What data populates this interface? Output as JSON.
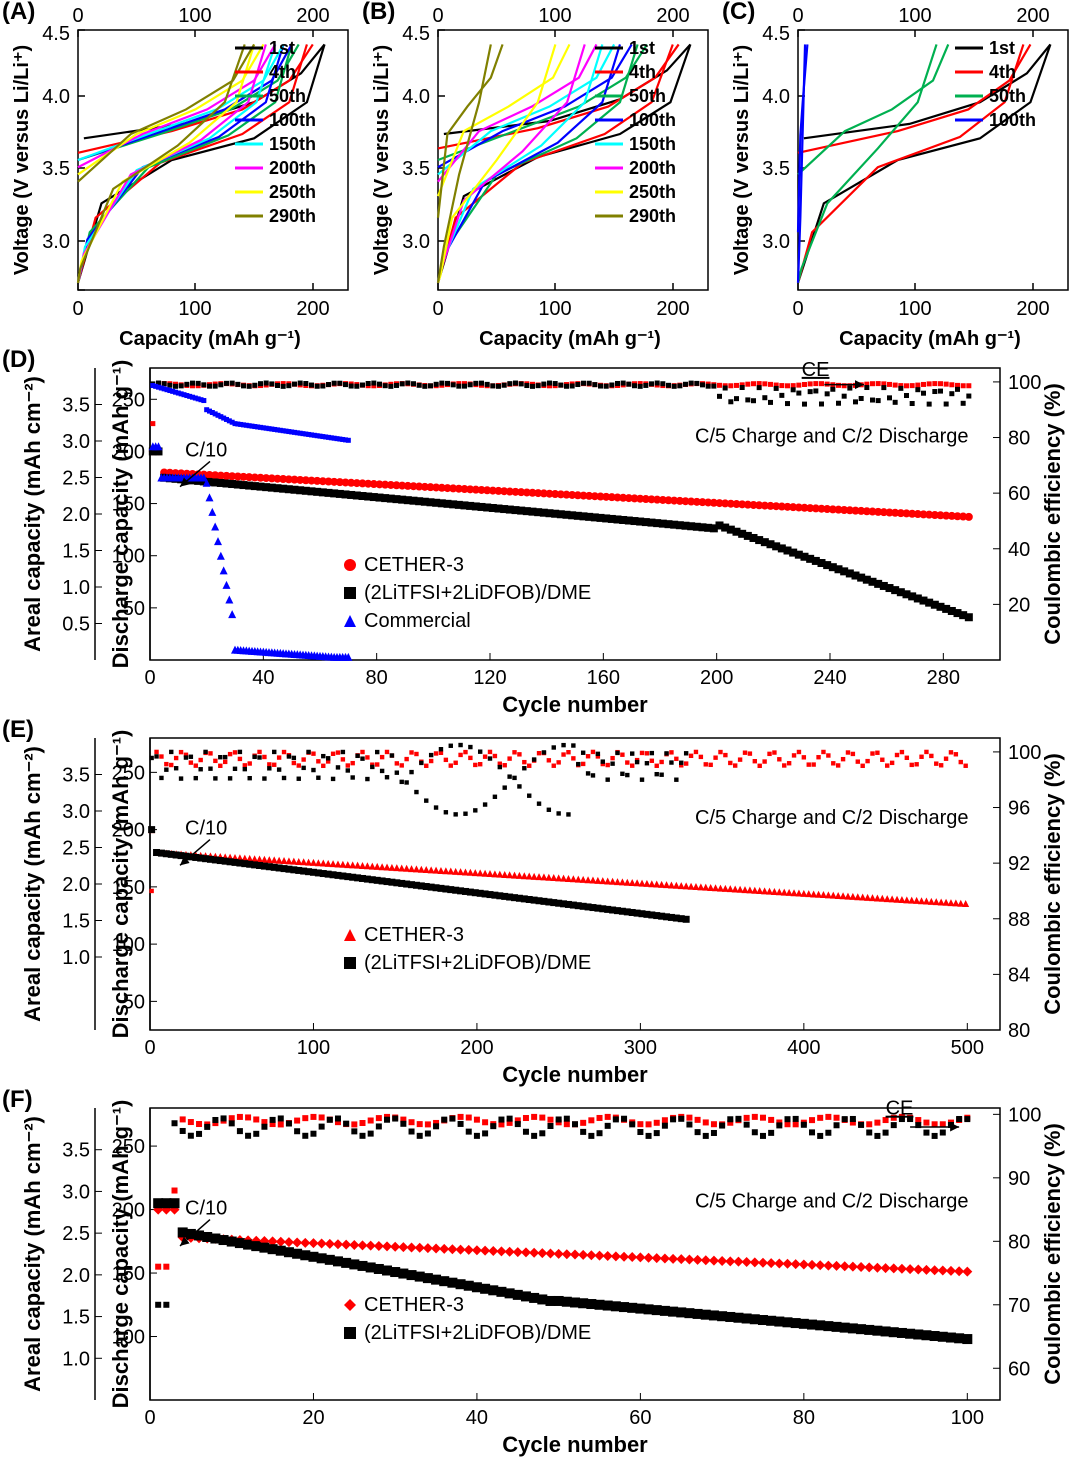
{
  "panel_labels": {
    "A": "(A)",
    "B": "(B)",
    "C": "(C)",
    "D": "(D)",
    "E": "(E)",
    "F": "(F)"
  },
  "panel_label_fontsize": 24,
  "voltage": {
    "xlabel": "Capacity (mAh g⁻¹)",
    "ylabel": "Voltage (V versus Li/Li⁺)",
    "xlim": [
      0,
      230
    ],
    "ylim": [
      2.7,
      4.5
    ],
    "xticks": [
      0,
      100,
      200
    ],
    "yticks": [
      3.0,
      3.5,
      4.0,
      4.5
    ],
    "top_xticks": [
      0,
      100,
      200
    ],
    "label_fontsize": 22,
    "tick_fontsize": 20,
    "line_width": 2.2,
    "legend_items": [
      {
        "label": "1st",
        "color": "#000000"
      },
      {
        "label": "4th",
        "color": "#ff0000"
      },
      {
        "label": "50th",
        "color": "#00b050"
      },
      {
        "label": "100th",
        "color": "#0000ff"
      },
      {
        "label": "150th",
        "color": "#00ffff"
      },
      {
        "label": "200th",
        "color": "#ff00ff"
      },
      {
        "label": "250th",
        "color": "#ffff00"
      },
      {
        "label": "290th",
        "color": "#808000"
      }
    ],
    "legend_items_C": [
      {
        "label": "1st",
        "color": "#000000"
      },
      {
        "label": "4th",
        "color": "#ff0000"
      },
      {
        "label": "50th",
        "color": "#00b050"
      },
      {
        "label": "100th",
        "color": "#0000ff"
      }
    ]
  },
  "panelA_curves": [
    {
      "color": "#000000",
      "charge": [
        [
          5,
          3.75
        ],
        [
          90,
          3.85
        ],
        [
          150,
          4.0
        ],
        [
          190,
          4.2
        ],
        [
          210,
          4.4
        ]
      ],
      "discharge": [
        [
          210,
          4.4
        ],
        [
          195,
          4.0
        ],
        [
          150,
          3.75
        ],
        [
          80,
          3.6
        ],
        [
          20,
          3.3
        ],
        [
          0,
          2.75
        ]
      ]
    },
    {
      "color": "#ff0000",
      "charge": [
        [
          0,
          3.65
        ],
        [
          80,
          3.8
        ],
        [
          140,
          3.95
        ],
        [
          180,
          4.15
        ],
        [
          200,
          4.4
        ]
      ],
      "discharge": [
        [
          195,
          4.4
        ],
        [
          180,
          4.0
        ],
        [
          140,
          3.78
        ],
        [
          70,
          3.58
        ],
        [
          15,
          3.2
        ],
        [
          0,
          2.75
        ]
      ]
    },
    {
      "color": "#00b050",
      "charge": [
        [
          0,
          3.6
        ],
        [
          70,
          3.78
        ],
        [
          130,
          3.95
        ],
        [
          170,
          4.15
        ],
        [
          188,
          4.4
        ]
      ],
      "discharge": [
        [
          182,
          4.4
        ],
        [
          168,
          4.0
        ],
        [
          128,
          3.77
        ],
        [
          60,
          3.55
        ],
        [
          10,
          3.1
        ],
        [
          0,
          2.75
        ]
      ]
    },
    {
      "color": "#0000ff",
      "charge": [
        [
          0,
          3.6
        ],
        [
          65,
          3.78
        ],
        [
          125,
          3.95
        ],
        [
          165,
          4.15
        ],
        [
          182,
          4.4
        ]
      ],
      "discharge": [
        [
          175,
          4.4
        ],
        [
          160,
          4.0
        ],
        [
          120,
          3.76
        ],
        [
          55,
          3.55
        ],
        [
          8,
          3.05
        ],
        [
          0,
          2.75
        ]
      ]
    },
    {
      "color": "#00ffff",
      "charge": [
        [
          0,
          3.6
        ],
        [
          60,
          3.78
        ],
        [
          118,
          3.95
        ],
        [
          158,
          4.15
        ],
        [
          175,
          4.4
        ]
      ],
      "discharge": [
        [
          168,
          4.4
        ],
        [
          152,
          4.0
        ],
        [
          112,
          3.75
        ],
        [
          50,
          3.53
        ],
        [
          6,
          3.0
        ],
        [
          0,
          2.75
        ]
      ]
    },
    {
      "color": "#ff00ff",
      "charge": [
        [
          0,
          3.55
        ],
        [
          55,
          3.78
        ],
        [
          110,
          3.95
        ],
        [
          150,
          4.15
        ],
        [
          168,
          4.4
        ]
      ],
      "discharge": [
        [
          160,
          4.4
        ],
        [
          145,
          4.0
        ],
        [
          105,
          3.74
        ],
        [
          45,
          3.5
        ],
        [
          5,
          2.95
        ],
        [
          0,
          2.75
        ]
      ]
    },
    {
      "color": "#ffff00",
      "charge": [
        [
          0,
          3.5
        ],
        [
          50,
          3.78
        ],
        [
          100,
          3.95
        ],
        [
          140,
          4.15
        ],
        [
          158,
          4.4
        ]
      ],
      "discharge": [
        [
          150,
          4.4
        ],
        [
          135,
          4.0
        ],
        [
          95,
          3.72
        ],
        [
          38,
          3.45
        ],
        [
          3,
          2.9
        ],
        [
          0,
          2.75
        ]
      ]
    },
    {
      "color": "#808000",
      "charge": [
        [
          0,
          3.45
        ],
        [
          45,
          3.78
        ],
        [
          92,
          3.95
        ],
        [
          132,
          4.15
        ],
        [
          150,
          4.4
        ]
      ],
      "discharge": [
        [
          142,
          4.4
        ],
        [
          125,
          4.0
        ],
        [
          85,
          3.7
        ],
        [
          30,
          3.4
        ],
        [
          2,
          2.85
        ],
        [
          0,
          2.75
        ]
      ]
    }
  ],
  "panelB_curves": [
    {
      "color": "#000000",
      "charge": [
        [
          5,
          3.78
        ],
        [
          95,
          3.87
        ],
        [
          155,
          4.02
        ],
        [
          195,
          4.22
        ],
        [
          215,
          4.4
        ]
      ],
      "discharge": [
        [
          215,
          4.4
        ],
        [
          198,
          4.0
        ],
        [
          155,
          3.78
        ],
        [
          85,
          3.62
        ],
        [
          22,
          3.35
        ],
        [
          0,
          2.75
        ]
      ]
    },
    {
      "color": "#ff0000",
      "charge": [
        [
          0,
          3.68
        ],
        [
          85,
          3.82
        ],
        [
          145,
          3.97
        ],
        [
          185,
          4.17
        ],
        [
          205,
          4.4
        ]
      ],
      "discharge": [
        [
          200,
          4.4
        ],
        [
          182,
          4.0
        ],
        [
          142,
          3.78
        ],
        [
          72,
          3.58
        ],
        [
          15,
          3.2
        ],
        [
          0,
          2.75
        ]
      ]
    },
    {
      "color": "#00b050",
      "charge": [
        [
          0,
          3.6
        ],
        [
          65,
          3.8
        ],
        [
          120,
          3.97
        ],
        [
          160,
          4.17
        ],
        [
          178,
          4.4
        ]
      ],
      "discharge": [
        [
          170,
          4.4
        ],
        [
          155,
          4.0
        ],
        [
          118,
          3.75
        ],
        [
          50,
          3.5
        ],
        [
          8,
          3.0
        ],
        [
          0,
          2.75
        ]
      ]
    },
    {
      "color": "#0000ff",
      "charge": [
        [
          0,
          3.55
        ],
        [
          55,
          3.8
        ],
        [
          108,
          3.97
        ],
        [
          148,
          4.17
        ],
        [
          165,
          4.4
        ]
      ],
      "discharge": [
        [
          155,
          4.4
        ],
        [
          140,
          4.0
        ],
        [
          102,
          3.72
        ],
        [
          40,
          3.45
        ],
        [
          6,
          2.95
        ],
        [
          0,
          2.75
        ]
      ]
    },
    {
      "color": "#00ffff",
      "charge": [
        [
          0,
          3.5
        ],
        [
          45,
          3.8
        ],
        [
          95,
          3.97
        ],
        [
          135,
          4.17
        ],
        [
          150,
          4.4
        ]
      ],
      "discharge": [
        [
          140,
          4.4
        ],
        [
          125,
          4.0
        ],
        [
          88,
          3.7
        ],
        [
          30,
          3.4
        ],
        [
          4,
          2.9
        ],
        [
          0,
          2.75
        ]
      ]
    },
    {
      "color": "#ff00ff",
      "charge": [
        [
          0,
          3.45
        ],
        [
          35,
          3.8
        ],
        [
          80,
          3.97
        ],
        [
          120,
          4.17
        ],
        [
          135,
          4.4
        ]
      ],
      "discharge": [
        [
          125,
          4.4
        ],
        [
          110,
          4.0
        ],
        [
          72,
          3.66
        ],
        [
          22,
          3.32
        ],
        [
          3,
          2.85
        ],
        [
          0,
          2.75
        ]
      ]
    },
    {
      "color": "#ffff00",
      "charge": [
        [
          0,
          3.35
        ],
        [
          22,
          3.8
        ],
        [
          60,
          3.97
        ],
        [
          98,
          4.17
        ],
        [
          112,
          4.4
        ]
      ],
      "discharge": [
        [
          100,
          4.4
        ],
        [
          85,
          4.0
        ],
        [
          50,
          3.6
        ],
        [
          12,
          3.2
        ],
        [
          2,
          2.8
        ],
        [
          0,
          2.75
        ]
      ]
    },
    {
      "color": "#808000",
      "charge": [
        [
          0,
          3.2
        ],
        [
          8,
          3.78
        ],
        [
          25,
          3.97
        ],
        [
          45,
          4.17
        ],
        [
          55,
          4.4
        ]
      ],
      "discharge": [
        [
          45,
          4.4
        ],
        [
          35,
          4.0
        ],
        [
          18,
          3.5
        ],
        [
          5,
          3.0
        ],
        [
          0,
          2.75
        ]
      ]
    }
  ],
  "panelC_curves": [
    {
      "color": "#000000",
      "charge": [
        [
          5,
          3.75
        ],
        [
          95,
          3.85
        ],
        [
          155,
          4.0
        ],
        [
          195,
          4.2
        ],
        [
          215,
          4.4
        ]
      ],
      "discharge": [
        [
          215,
          4.4
        ],
        [
          198,
          4.0
        ],
        [
          155,
          3.75
        ],
        [
          85,
          3.6
        ],
        [
          22,
          3.3
        ],
        [
          0,
          2.75
        ]
      ]
    },
    {
      "color": "#ff0000",
      "charge": [
        [
          0,
          3.65
        ],
        [
          85,
          3.8
        ],
        [
          145,
          3.95
        ],
        [
          180,
          4.15
        ],
        [
          198,
          4.4
        ]
      ],
      "discharge": [
        [
          192,
          4.4
        ],
        [
          176,
          4.0
        ],
        [
          138,
          3.76
        ],
        [
          68,
          3.55
        ],
        [
          12,
          3.1
        ],
        [
          0,
          2.75
        ]
      ]
    },
    {
      "color": "#00b050",
      "charge": [
        [
          0,
          3.5
        ],
        [
          40,
          3.8
        ],
        [
          80,
          3.95
        ],
        [
          115,
          4.15
        ],
        [
          128,
          4.4
        ]
      ],
      "discharge": [
        [
          118,
          4.4
        ],
        [
          102,
          4.0
        ],
        [
          68,
          3.68
        ],
        [
          25,
          3.3
        ],
        [
          3,
          2.85
        ],
        [
          0,
          2.75
        ]
      ]
    },
    {
      "color": "#0000ff",
      "charge": [
        [
          0,
          3.1
        ],
        [
          2,
          3.77
        ],
        [
          4,
          4.0
        ],
        [
          6,
          4.2
        ],
        [
          8,
          4.4
        ]
      ],
      "discharge": [
        [
          6,
          4.4
        ],
        [
          4,
          3.8
        ],
        [
          2,
          3.2
        ],
        [
          0,
          2.75
        ]
      ]
    }
  ],
  "cycling": {
    "leftlabel": "Areal capacity (mAh cm⁻²)",
    "midlabel": "Discharge capacity (mAh g⁻¹)",
    "rightlabel": "Coulombic efficiency (%)",
    "xlabel": "Cycle number",
    "label_fontsize": 22,
    "tick_fontsize": 20,
    "annotation_c10": "C/10",
    "annotation_rate": "C/5 Charge and C/2 Discharge",
    "annotation_ce": "CE",
    "marker_size": 4
  },
  "panelD": {
    "xlim": [
      0,
      300
    ],
    "xticks": [
      0,
      40,
      80,
      120,
      160,
      200,
      240,
      280
    ],
    "left_lim": [
      0,
      4.0
    ],
    "left_ticks": [
      0.5,
      1.0,
      1.5,
      2.0,
      2.5,
      3.0,
      3.5
    ],
    "mid_lim": [
      0,
      280
    ],
    "mid_ticks": [
      50,
      100,
      150,
      200,
      250
    ],
    "right_lim": [
      0,
      105
    ],
    "right_ticks": [
      20,
      40,
      60,
      80,
      100
    ],
    "legend": [
      {
        "label": "CETHER-3",
        "color": "#ff0000",
        "marker": "circle"
      },
      {
        "label": "(2LiTFSI+2LiDFOB)/DME",
        "color": "#000000",
        "marker": "square"
      },
      {
        "label": "Commercial",
        "color": "#0000ff",
        "marker": "triangle"
      }
    ]
  },
  "panelE": {
    "xlim": [
      0,
      520
    ],
    "xticks": [
      0,
      100,
      200,
      300,
      400,
      500
    ],
    "left_lim": [
      0,
      4.0
    ],
    "left_ticks": [
      1.0,
      1.5,
      2.0,
      2.5,
      3.0,
      3.5
    ],
    "mid_lim": [
      25,
      280
    ],
    "mid_ticks": [
      50,
      100,
      150,
      200,
      250
    ],
    "right_lim": [
      80,
      101
    ],
    "right_ticks": [
      80,
      84,
      88,
      92,
      96,
      100
    ],
    "legend": [
      {
        "label": "CETHER-3",
        "color": "#ff0000",
        "marker": "triangle"
      },
      {
        "label": "(2LiTFSI+2LiDFOB)/DME",
        "color": "#000000",
        "marker": "square"
      }
    ]
  },
  "panelF": {
    "xlim": [
      0,
      104
    ],
    "xticks": [
      0,
      20,
      40,
      60,
      80,
      100
    ],
    "left_lim": [
      0.5,
      4.0
    ],
    "left_ticks": [
      1.0,
      1.5,
      2.0,
      2.5,
      3.0,
      3.5
    ],
    "mid_lim": [
      50,
      280
    ],
    "mid_ticks": [
      100,
      150,
      200,
      250
    ],
    "right_lim": [
      55,
      101
    ],
    "right_ticks": [
      60,
      70,
      80,
      90,
      100
    ],
    "legend": [
      {
        "label": "CETHER-3",
        "color": "#ff0000",
        "marker": "diamond"
      },
      {
        "label": "(2LiTFSI+2LiDFOB)/DME",
        "color": "#000000",
        "marker": "square"
      }
    ]
  }
}
